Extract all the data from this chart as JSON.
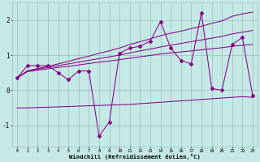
{
  "x": [
    0,
    1,
    2,
    3,
    4,
    5,
    6,
    7,
    8,
    9,
    10,
    11,
    12,
    13,
    14,
    15,
    16,
    17,
    18,
    19,
    20,
    21,
    22,
    23
  ],
  "line_zigzag": [
    0.35,
    0.7,
    0.7,
    0.7,
    0.5,
    0.3,
    0.55,
    0.55,
    -1.3,
    -0.9,
    1.05,
    1.2,
    1.25,
    1.4,
    1.95,
    1.2,
    0.85,
    0.75,
    2.2,
    0.05,
    0.0,
    1.3,
    1.5,
    -0.15
  ],
  "line_upper": [
    0.35,
    0.55,
    0.62,
    0.68,
    0.75,
    0.82,
    0.9,
    0.97,
    1.05,
    1.12,
    1.2,
    1.3,
    1.38,
    1.46,
    1.55,
    1.62,
    1.68,
    1.75,
    1.82,
    1.9,
    1.97,
    2.1,
    2.17,
    2.22
  ],
  "line_mid_upper": [
    0.35,
    0.55,
    0.6,
    0.65,
    0.7,
    0.75,
    0.8,
    0.85,
    0.9,
    0.95,
    1.0,
    1.06,
    1.12,
    1.17,
    1.23,
    1.28,
    1.33,
    1.38,
    1.43,
    1.48,
    1.53,
    1.6,
    1.65,
    1.7
  ],
  "line_mid": [
    0.35,
    0.53,
    0.57,
    0.61,
    0.65,
    0.68,
    0.72,
    0.76,
    0.8,
    0.83,
    0.87,
    0.91,
    0.95,
    0.99,
    1.03,
    1.06,
    1.09,
    1.12,
    1.15,
    1.18,
    1.21,
    1.25,
    1.28,
    1.3
  ],
  "line_lower": [
    -0.5,
    -0.5,
    -0.49,
    -0.48,
    -0.47,
    -0.46,
    -0.45,
    -0.44,
    -0.43,
    -0.42,
    -0.41,
    -0.4,
    -0.38,
    -0.36,
    -0.34,
    -0.32,
    -0.3,
    -0.28,
    -0.26,
    -0.24,
    -0.22,
    -0.2,
    -0.18,
    -0.2
  ],
  "bg_color": "#c5eae6",
  "grid_color": "#9bbfbb",
  "line_color": "#880088",
  "xlabel": "Windchill (Refroidissement éolien,°C)",
  "xlim": [
    -0.5,
    23.5
  ],
  "ylim": [
    -1.6,
    2.5
  ],
  "yticks": [
    -1,
    0,
    1,
    2
  ],
  "xticks": [
    0,
    1,
    2,
    3,
    4,
    5,
    6,
    7,
    8,
    9,
    10,
    11,
    12,
    13,
    14,
    15,
    16,
    17,
    18,
    19,
    20,
    21,
    22,
    23
  ]
}
